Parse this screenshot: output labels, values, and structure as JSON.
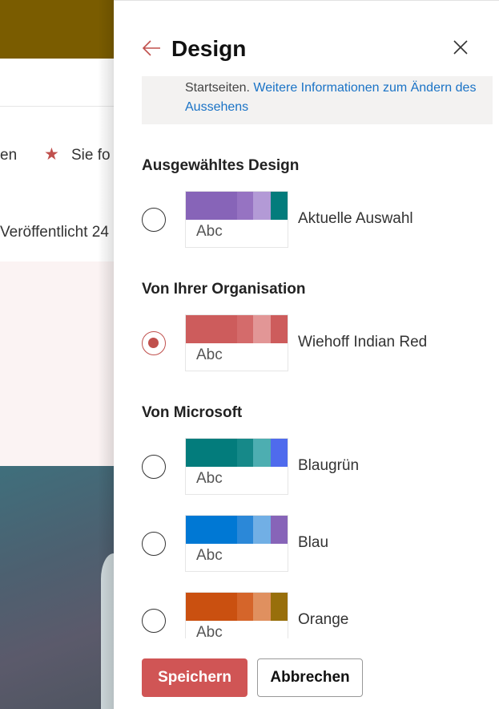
{
  "background": {
    "text1": "en",
    "text2": "Sie fo",
    "text3": "Veröffentlicht 24",
    "star_icon": "star-icon"
  },
  "panel": {
    "title": "Design",
    "back_icon": "arrow-left-icon",
    "close_icon": "close-icon",
    "info": {
      "text": "Startseiten. ",
      "link": "Weitere Informationen zum Ändern des Aussehens"
    },
    "sections": [
      {
        "heading": "Ausgewähltes Design",
        "themes": [
          {
            "name": "Aktuelle Auswahl",
            "selected": false,
            "colors": [
              "#8764b8",
              "#9673c2",
              "#b39ad6",
              "#037c7c"
            ]
          }
        ]
      },
      {
        "heading": "Von Ihrer Organisation",
        "themes": [
          {
            "name": "Wiehoff Indian Red",
            "selected": true,
            "colors": [
              "#cd5c5c",
              "#d46b6b",
              "#e29696",
              "#cd5c5c"
            ]
          }
        ]
      },
      {
        "heading": "Von Microsoft",
        "themes": [
          {
            "name": "Blaugrün",
            "selected": false,
            "colors": [
              "#037c7c",
              "#168989",
              "#4daeb1",
              "#4f6bed"
            ]
          },
          {
            "name": "Blau",
            "selected": false,
            "colors": [
              "#0078d4",
              "#2b88d8",
              "#71afe5",
              "#8764b8"
            ]
          },
          {
            "name": "Orange",
            "selected": false,
            "colors": [
              "#ca5010",
              "#d5652a",
              "#e0905f",
              "#986f0b"
            ]
          }
        ]
      }
    ],
    "preview_text": "Abc",
    "save_label": "Speichern",
    "cancel_label": "Abbrechen"
  }
}
